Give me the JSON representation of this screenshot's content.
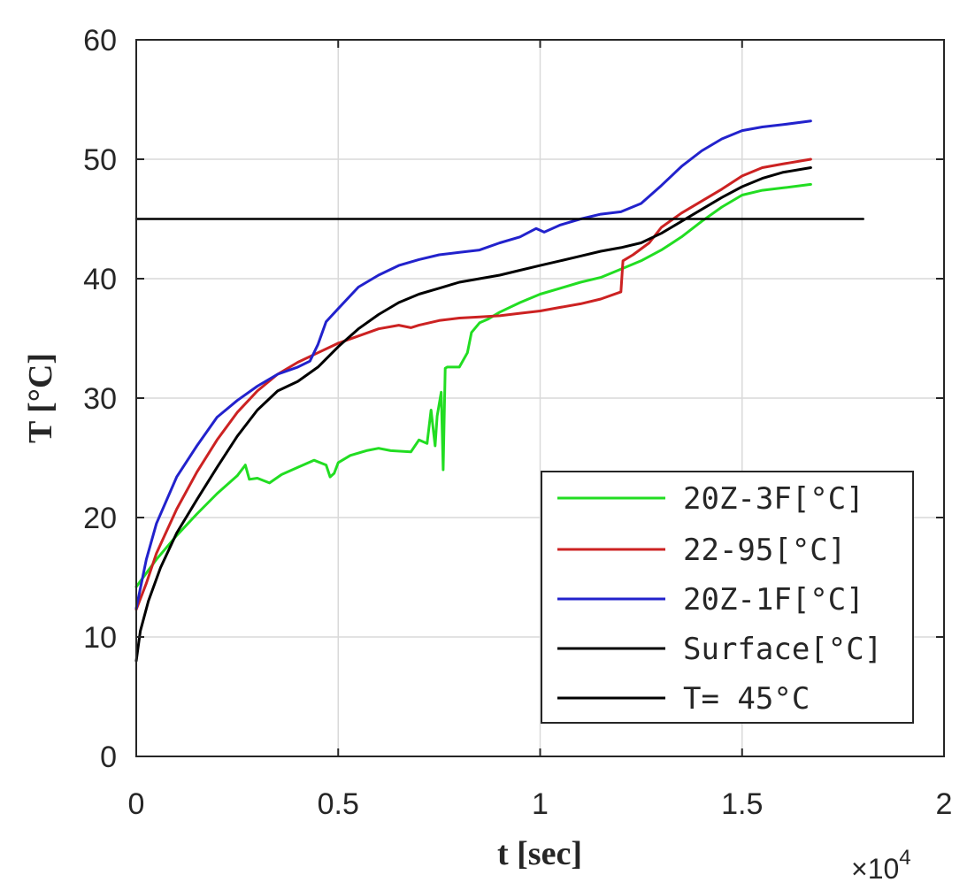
{
  "chart_data": {
    "type": "line",
    "xlabel": "t [sec]",
    "ylabel": "T [°C]",
    "x_multiplier": "×10",
    "x_multiplier_exp": "4",
    "xlim": [
      0,
      20000
    ],
    "ylim": [
      0,
      60
    ],
    "xticks": [
      0,
      5000,
      10000,
      15000,
      20000
    ],
    "xtick_labels": [
      "0",
      "0.5",
      "1",
      "1.5",
      "2"
    ],
    "yticks": [
      0,
      10,
      20,
      30,
      40,
      50,
      60
    ],
    "ytick_labels": [
      "0",
      "10",
      "20",
      "30",
      "40",
      "50",
      "60"
    ],
    "grid": true,
    "legend_position": "lower-right",
    "series": [
      {
        "name": "20Z-3F[°C]",
        "color": "#22dd22",
        "x": [
          0,
          500,
          1000,
          1500,
          2000,
          2500,
          2700,
          2800,
          3000,
          3300,
          3600,
          4000,
          4400,
          4700,
          4800,
          4900,
          5000,
          5300,
          5700,
          6000,
          6300,
          6800,
          7000,
          7200,
          7300,
          7400,
          7450,
          7550,
          7600,
          7650,
          7700,
          7800,
          8000,
          8200,
          8300,
          8500,
          8700,
          9000,
          9500,
          10000,
          10500,
          11000,
          11500,
          12000,
          12500,
          13000,
          13500,
          14000,
          14500,
          15000,
          15500,
          16000,
          16700
        ],
        "y": [
          14.2,
          16.5,
          18.5,
          20.3,
          22.0,
          23.5,
          24.4,
          23.2,
          23.3,
          22.9,
          23.6,
          24.2,
          24.8,
          24.4,
          23.4,
          23.7,
          24.6,
          25.2,
          25.6,
          25.8,
          25.6,
          25.5,
          26.5,
          26.2,
          29.0,
          26.0,
          28.5,
          30.5,
          24.0,
          32.5,
          32.6,
          32.6,
          32.6,
          33.8,
          35.5,
          36.3,
          36.6,
          37.2,
          38.0,
          38.7,
          39.2,
          39.7,
          40.1,
          40.8,
          41.5,
          42.4,
          43.5,
          44.8,
          46.0,
          47.0,
          47.4,
          47.6,
          47.9
        ]
      },
      {
        "name": "22-95[°C]",
        "color": "#cc2222",
        "x": [
          0,
          250,
          500,
          1000,
          1500,
          2000,
          2500,
          3000,
          3500,
          4000,
          4500,
          5000,
          5500,
          6000,
          6500,
          6800,
          7000,
          7500,
          8000,
          8500,
          9000,
          9500,
          10000,
          10500,
          11000,
          11500,
          12000,
          12050,
          12300,
          12700,
          13000,
          13500,
          14000,
          14500,
          15000,
          15500,
          16000,
          16700
        ],
        "y": [
          12.3,
          14.5,
          17.0,
          20.7,
          23.8,
          26.5,
          28.8,
          30.6,
          32.0,
          33.0,
          33.8,
          34.6,
          35.2,
          35.8,
          36.1,
          35.9,
          36.1,
          36.5,
          36.7,
          36.8,
          36.9,
          37.1,
          37.3,
          37.6,
          37.9,
          38.3,
          38.9,
          41.5,
          42.0,
          43.0,
          44.3,
          45.5,
          46.5,
          47.5,
          48.6,
          49.3,
          49.6,
          50.0
        ]
      },
      {
        "name": "20Z-1F[°C]",
        "color": "#2222cc",
        "x": [
          0,
          250,
          500,
          1000,
          1500,
          2000,
          2500,
          3000,
          3500,
          4000,
          4300,
          4500,
          4700,
          5000,
          5500,
          6000,
          6500,
          7000,
          7500,
          8000,
          8500,
          9000,
          9500,
          9900,
          10100,
          10500,
          11000,
          11500,
          12000,
          12500,
          13000,
          13500,
          14000,
          14500,
          15000,
          15500,
          16000,
          16700
        ],
        "y": [
          12.4,
          16.5,
          19.5,
          23.4,
          26.0,
          28.4,
          29.8,
          31.0,
          32.0,
          32.6,
          33.1,
          34.5,
          36.4,
          37.5,
          39.3,
          40.3,
          41.1,
          41.6,
          42.0,
          42.2,
          42.4,
          43.0,
          43.5,
          44.2,
          43.9,
          44.5,
          45.0,
          45.4,
          45.6,
          46.3,
          47.8,
          49.4,
          50.7,
          51.7,
          52.4,
          52.7,
          52.9,
          53.2
        ]
      },
      {
        "name": "Surface[°C]",
        "color": "#000000",
        "x": [
          0,
          100,
          300,
          600,
          1000,
          1500,
          2000,
          2500,
          3000,
          3500,
          4000,
          4500,
          5000,
          5500,
          6000,
          6500,
          7000,
          7500,
          8000,
          8500,
          9000,
          9500,
          10000,
          10500,
          11000,
          11500,
          12000,
          12500,
          13000,
          13500,
          14000,
          14500,
          15000,
          15500,
          16000,
          16700
        ],
        "y": [
          8.0,
          10.5,
          13.0,
          15.8,
          18.7,
          21.5,
          24.2,
          26.8,
          29.0,
          30.6,
          31.4,
          32.6,
          34.3,
          35.8,
          37.0,
          38.0,
          38.7,
          39.2,
          39.7,
          40.0,
          40.3,
          40.7,
          41.1,
          41.5,
          41.9,
          42.3,
          42.6,
          43.0,
          43.8,
          44.8,
          45.8,
          46.8,
          47.7,
          48.4,
          48.9,
          49.3
        ]
      },
      {
        "name": "T= 45°C",
        "color": "#000000",
        "x": [
          0,
          18000
        ],
        "y": [
          45,
          45
        ]
      }
    ]
  }
}
